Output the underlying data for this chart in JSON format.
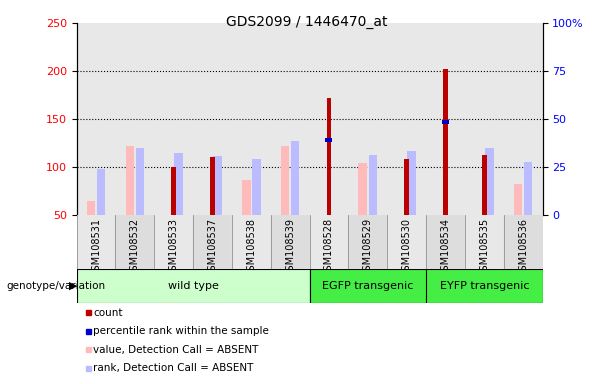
{
  "title": "GDS2099 / 1446470_at",
  "samples": [
    "GSM108531",
    "GSM108532",
    "GSM108533",
    "GSM108537",
    "GSM108538",
    "GSM108539",
    "GSM108528",
    "GSM108529",
    "GSM108530",
    "GSM108534",
    "GSM108535",
    "GSM108536"
  ],
  "groups": [
    {
      "label": "wild type",
      "color": "#ccffcc",
      "span": [
        0,
        6
      ]
    },
    {
      "label": "EGFP transgenic",
      "color": "#44ee44",
      "span": [
        6,
        9
      ]
    },
    {
      "label": "EYFP transgenic",
      "color": "#44ee44",
      "span": [
        9,
        12
      ]
    }
  ],
  "count": [
    null,
    null,
    100,
    110,
    null,
    null,
    172,
    null,
    108,
    202,
    113,
    null
  ],
  "percentile_rank_left": [
    null,
    null,
    null,
    null,
    null,
    null,
    128,
    null,
    null,
    147,
    null,
    null
  ],
  "value_absent": [
    65,
    122,
    null,
    null,
    86,
    122,
    null,
    104,
    null,
    null,
    null,
    82
  ],
  "rank_absent_left": [
    98,
    120,
    115,
    112,
    108,
    127,
    null,
    113,
    117,
    null,
    120,
    105
  ],
  "count_color": "#bb0000",
  "percentile_color": "#0000cc",
  "value_absent_color": "#ffbbbb",
  "rank_absent_color": "#bbbbff",
  "ylim_left": [
    50,
    250
  ],
  "ylim_right": [
    0,
    100
  ],
  "yticks_left": [
    50,
    100,
    150,
    200,
    250
  ],
  "yticks_right": [
    0,
    25,
    50,
    75,
    100
  ],
  "ytick_labels_right": [
    "0",
    "25",
    "50",
    "75",
    "100%"
  ],
  "bg_color": "#e8e8e8",
  "plot_bg": "white",
  "group_label": "genotype/variation",
  "legend": [
    {
      "label": "count",
      "color": "#bb0000"
    },
    {
      "label": "percentile rank within the sample",
      "color": "#0000cc"
    },
    {
      "label": "value, Detection Call = ABSENT",
      "color": "#ffbbbb"
    },
    {
      "label": "rank, Detection Call = ABSENT",
      "color": "#bbbbff"
    }
  ]
}
